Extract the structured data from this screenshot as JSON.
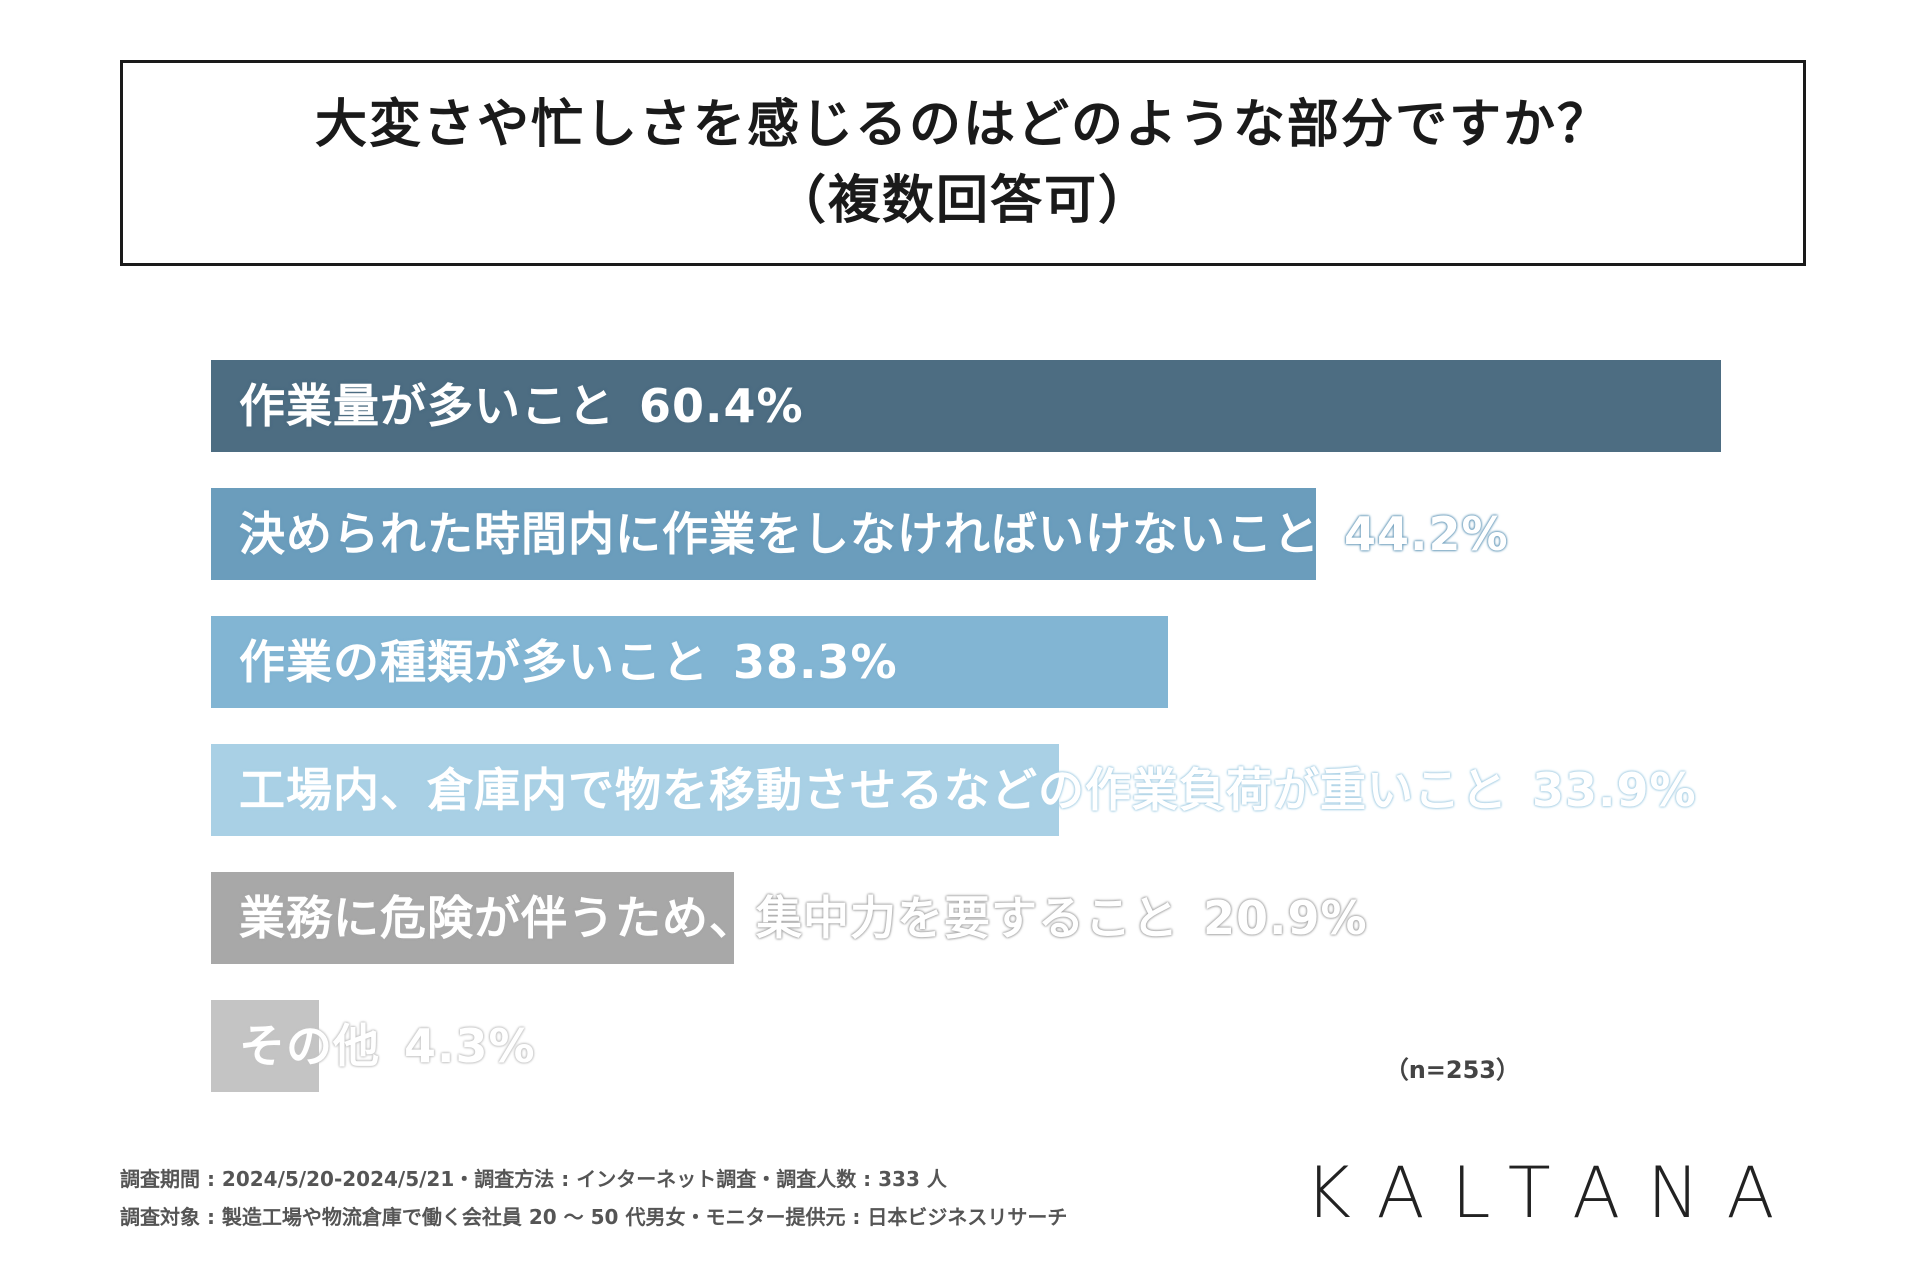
{
  "title": {
    "line1": "大変さや忙しさを感じるのはどのような部分ですか？",
    "line2": "（複数回答可）"
  },
  "chart_data": {
    "type": "bar",
    "orientation": "horizontal",
    "xlim": [
      0,
      60.4
    ],
    "categories": [
      "作業量が多いこと",
      "決められた時間内に作業をしなければいけないこと",
      "作業の種類が多いこと",
      "工場内、倉庫内で物を移動させるなどの作業負荷が重いこと",
      "業務に危険が伴うため、集中力を要すること",
      "その他"
    ],
    "values": [
      60.4,
      44.2,
      38.3,
      33.9,
      20.9,
      4.3
    ],
    "value_labels": [
      "60.4%",
      "44.2%",
      "38.3%",
      "33.9%",
      "20.9%",
      "4.3%"
    ],
    "colors": [
      "#4d6d82",
      "#6b9dbc",
      "#82b5d3",
      "#a9d0e5",
      "#a8a8a8",
      "#c4c4c4"
    ]
  },
  "n_label": "（n=253）",
  "footer": {
    "line1": "調査期間 : 2024/5/20-2024/5/21・調査方法 : インターネット調査・調査人数 : 333 人",
    "line2": "調査対象 : 製造工場や物流倉庫で働く会社員 20 ～ 50 代男女・モニター提供元 : 日本ビジネスリサーチ"
  },
  "logo": "KALTANA"
}
